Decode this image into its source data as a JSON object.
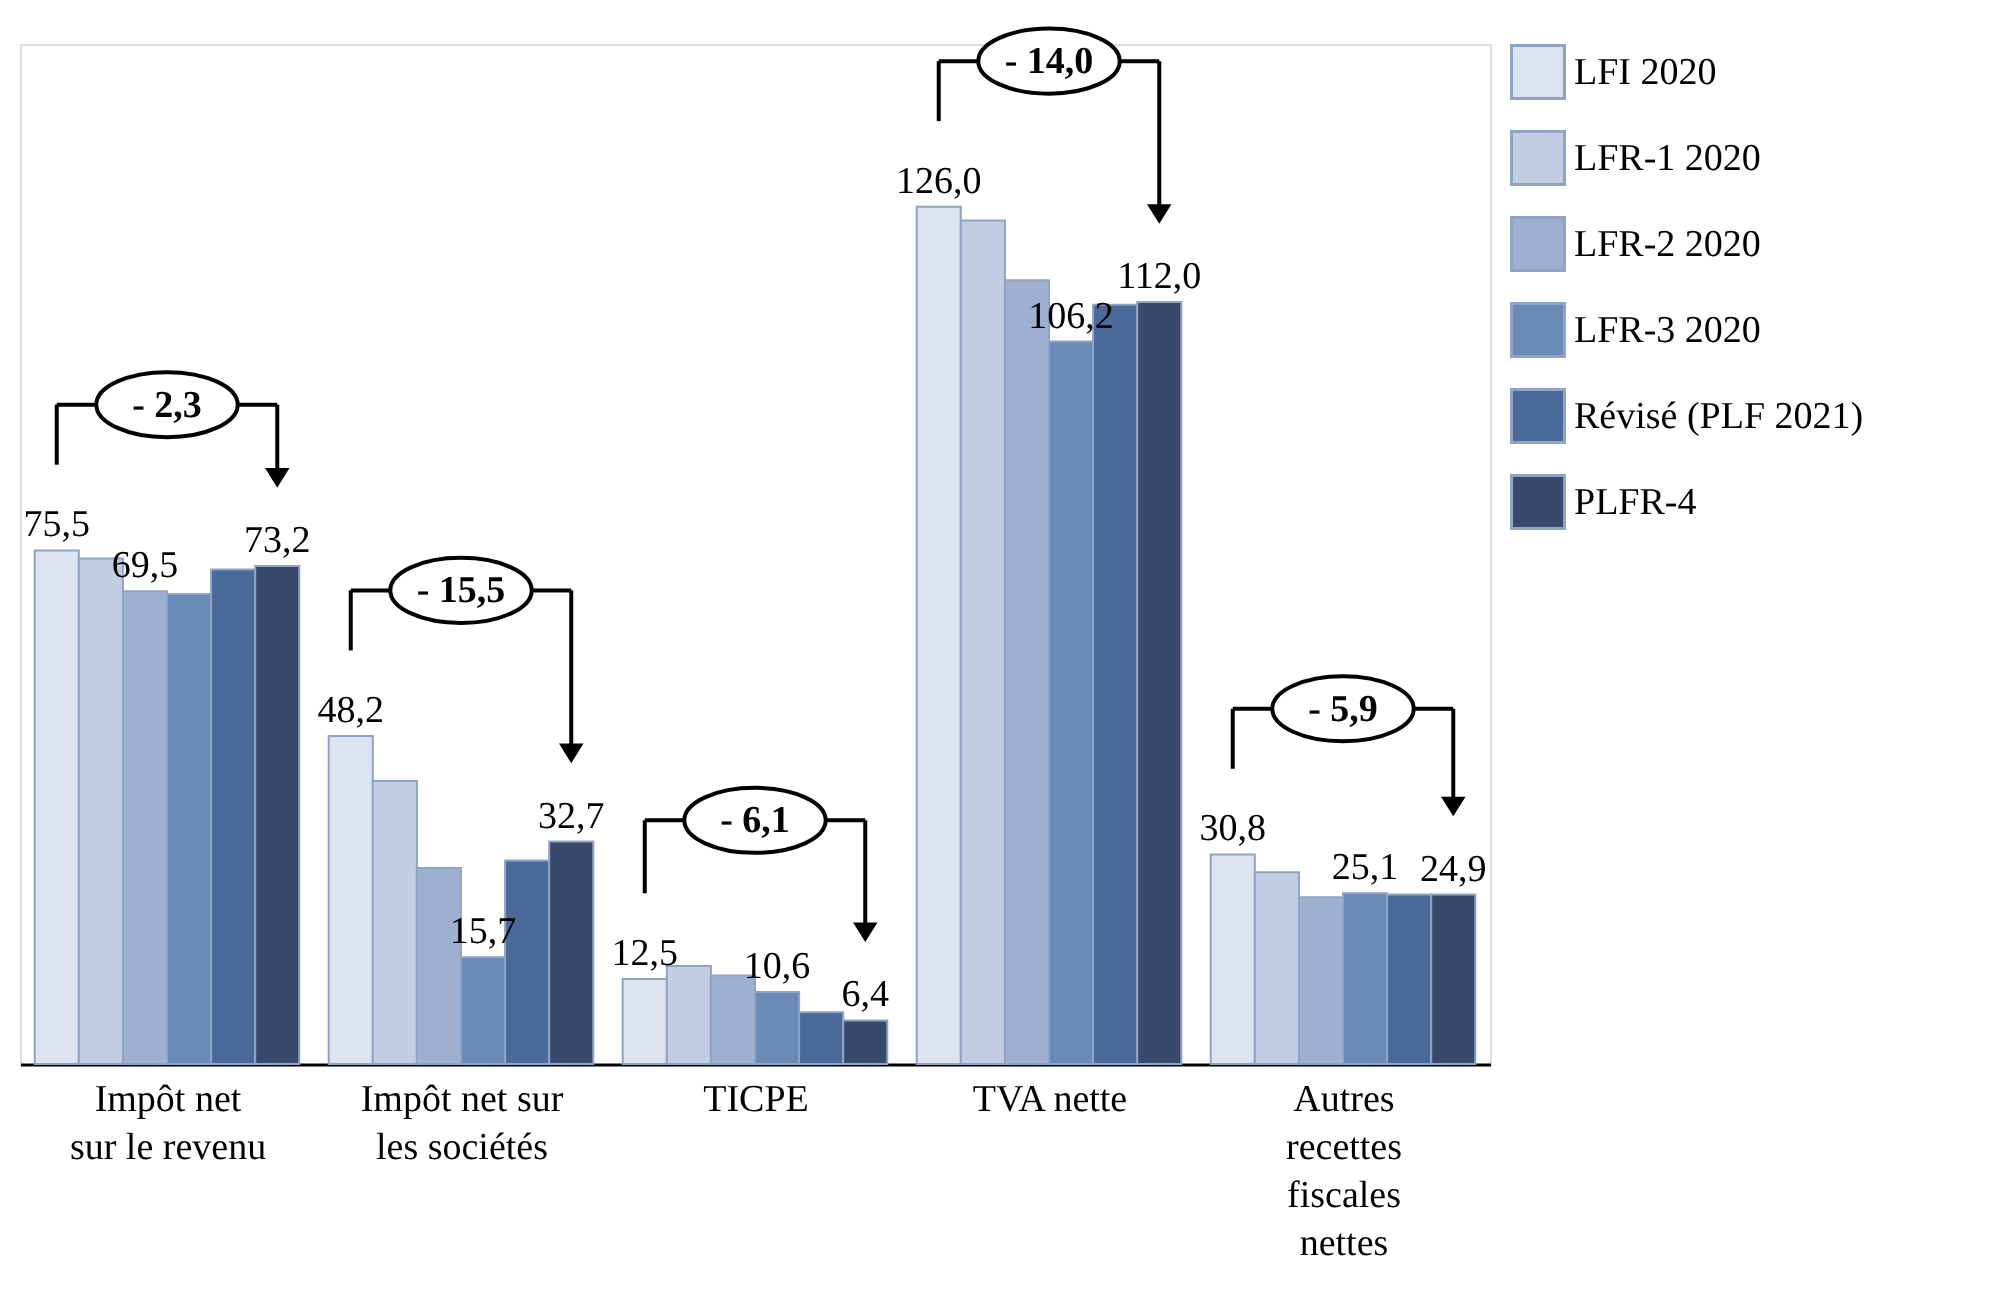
{
  "chart_data": {
    "type": "bar",
    "categories": [
      "Impôt net\nsur le revenu",
      "Impôt net sur\nles sociétés",
      "TICPE",
      "TVA nette",
      "Autres\nrecettes\nfiscales\nnettes"
    ],
    "series": [
      {
        "name": "LFI 2020",
        "color": "#dde4ef",
        "values": [
          75.5,
          48.2,
          12.5,
          126.0,
          30.8
        ],
        "value_labels": [
          "75,5",
          "48,2",
          "12,5",
          "126,0",
          "30,8"
        ]
      },
      {
        "name": "LFR-1 2020",
        "color": "#c3cee2",
        "values": [
          74.3,
          41.6,
          14.4,
          124.0,
          28.2
        ],
        "value_labels": [
          null,
          null,
          null,
          null,
          null
        ]
      },
      {
        "name": "LFR-2 2020",
        "color": "#9db0cf",
        "values": [
          69.5,
          28.8,
          13.0,
          115.2,
          24.5
        ],
        "value_labels": [
          "69,5",
          null,
          null,
          null,
          null
        ]
      },
      {
        "name": "LFR-3 2020",
        "color": "#6a8ab8",
        "values": [
          69.1,
          15.7,
          10.6,
          106.2,
          25.1
        ],
        "value_labels": [
          null,
          "15,7",
          "10,6",
          "106,2",
          "25,1"
        ]
      },
      {
        "name": "Révisé (PLF 2021)",
        "color": "#4a6a9a",
        "values": [
          72.7,
          29.9,
          7.6,
          111.6,
          24.9
        ],
        "value_labels": [
          null,
          null,
          null,
          null,
          null
        ]
      },
      {
        "name": "PLFR-4",
        "color": "#374a6b",
        "values": [
          73.2,
          32.7,
          6.4,
          112.0,
          24.9
        ],
        "value_labels": [
          "73,2",
          "32,7",
          "6,4",
          "112,0",
          "24,9"
        ]
      }
    ],
    "annotations": [
      "- 2,3",
      "- 15,5",
      "- 6,1",
      "- 14,0",
      "- 5,9"
    ],
    "legend": "right"
  }
}
